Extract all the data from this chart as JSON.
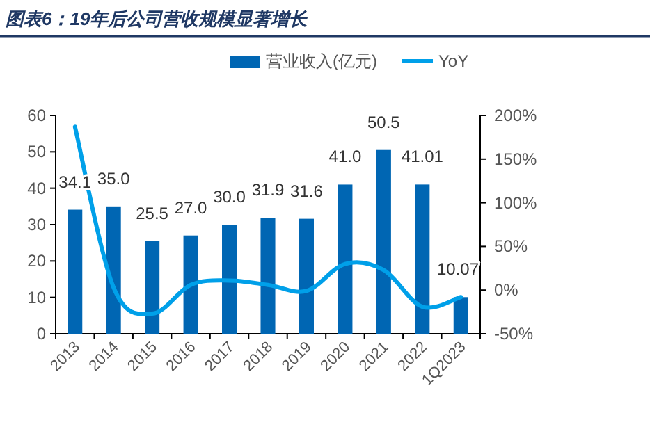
{
  "chart_data": {
    "type": "bar",
    "title": "图表6：19年后公司营收规模显著增长",
    "categories": [
      "2013",
      "2014",
      "2015",
      "2016",
      "2017",
      "2018",
      "2019",
      "2020",
      "2021",
      "2022",
      "1Q2023"
    ],
    "series": [
      {
        "name": "营业收入(亿元)",
        "color": "#0066b3",
        "values": [
          34.1,
          35.0,
          25.5,
          27.0,
          30.0,
          31.9,
          31.6,
          41.0,
          50.5,
          41.01,
          10.07
        ],
        "value_labels": [
          "34.1",
          "35.0",
          "25.5",
          "27.0",
          "30.0",
          "31.9",
          "31.6",
          "41.0",
          "50.5",
          "41.01",
          "10.07"
        ]
      },
      {
        "name": "YoY",
        "type": "line",
        "axis": "y2",
        "color": "#00a0e9",
        "values": [
          187,
          3,
          -27,
          6,
          11,
          6,
          -1,
          30,
          23,
          -19,
          -8
        ]
      }
    ],
    "ylim": [
      0,
      60
    ],
    "yticks": [
      0,
      10,
      20,
      30,
      40,
      50,
      60
    ],
    "y2lim": [
      -50,
      200
    ],
    "y2ticks": [
      {
        "value": -50,
        "label": "-50%"
      },
      {
        "value": 0,
        "label": "0%"
      },
      {
        "value": 50,
        "label": "50%"
      },
      {
        "value": 100,
        "label": "100%"
      },
      {
        "value": 150,
        "label": "150%"
      },
      {
        "value": 200,
        "label": "200%"
      }
    ],
    "legend": "top",
    "grid": false
  }
}
